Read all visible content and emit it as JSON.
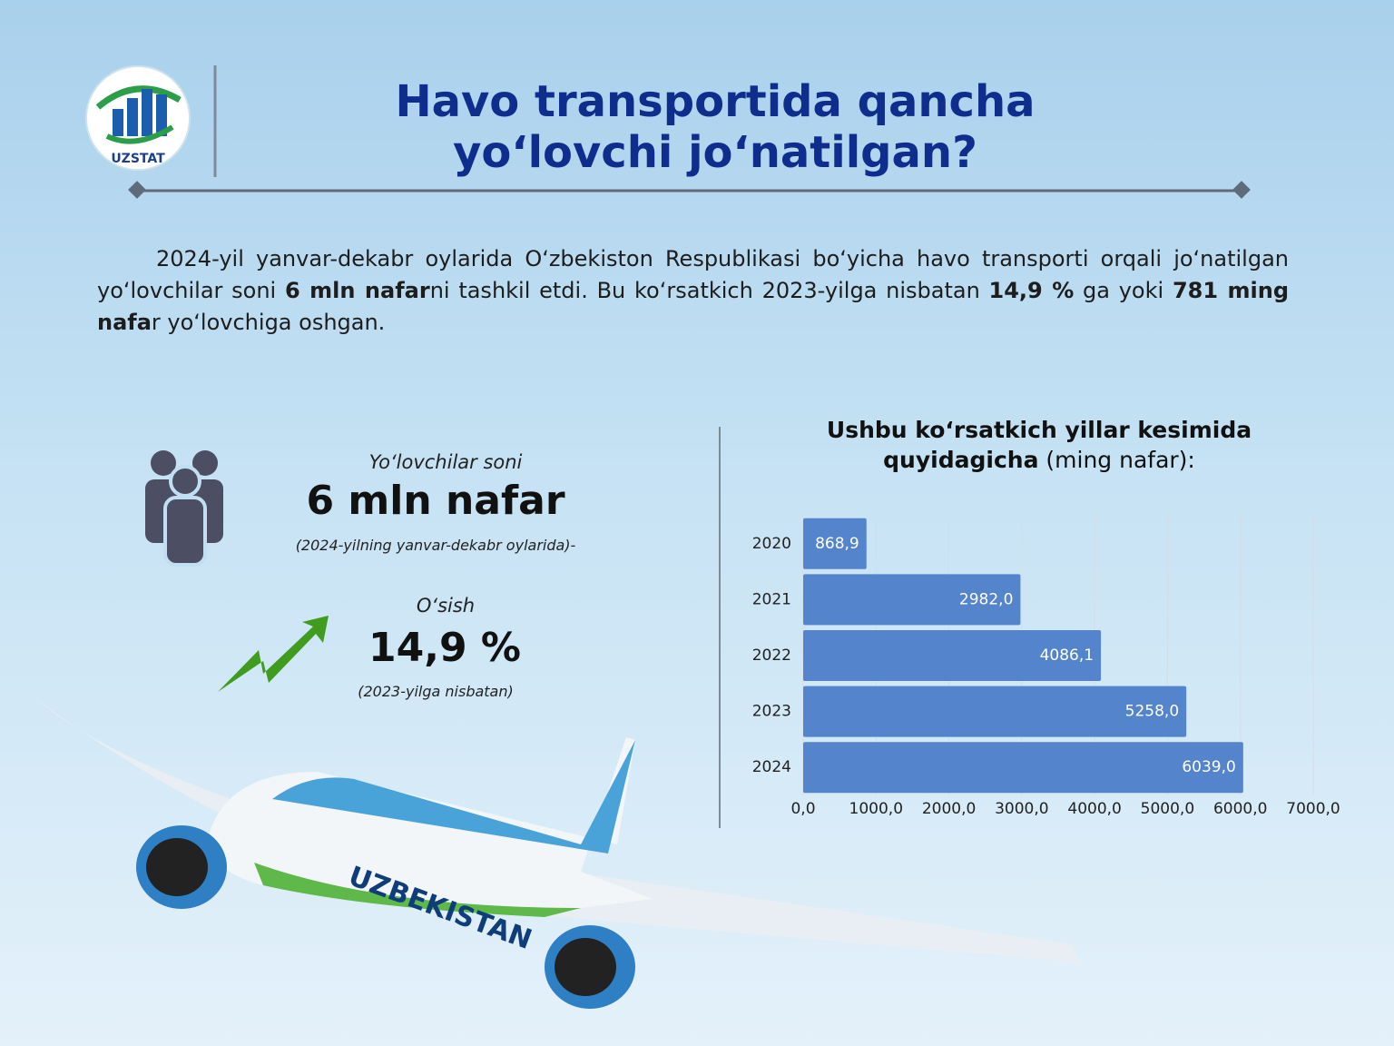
{
  "header": {
    "logo_text": "UZSTAT",
    "title_lines": [
      "Havo transportida qancha",
      "yo‘lovchi jo‘natilgan?"
    ]
  },
  "paragraph": {
    "runs": [
      {
        "text": "2024-yil yanvar-dekabr oylarida O‘zbekiston Respublikasi bo‘yicha havo transporti orqali jo‘natilgan yo‘lovchilar soni ",
        "bold": false
      },
      {
        "text": "6 mln nafar",
        "bold": true
      },
      {
        "text": "ni tashkil etdi. Bu ko‘rsatkich 2023-yilga nisbatan ",
        "bold": false
      },
      {
        "text": "14,9 %",
        "bold": true
      },
      {
        "text": " ga yoki ",
        "bold": false
      },
      {
        "text": "781 ming nafa",
        "bold": true
      },
      {
        "text": "r yo‘lovchiga oshgan.",
        "bold": false
      }
    ]
  },
  "stats": [
    {
      "label": "Yo‘lovchilar soni",
      "value": "6 mln nafar",
      "note": "(2024-yilning yanvar-dekabr oylarida)-"
    },
    {
      "label": "O‘sish",
      "value": "14,9 %",
      "note": "(2023-yilga nisbatan)"
    }
  ],
  "chart_data": {
    "type": "hbar",
    "title": "Ushbu ko‘rsatkich yillar kesimida",
    "title_line2": "quyidagicha",
    "unit": "(ming nafar):",
    "categories": [
      "2020",
      "2021",
      "2022",
      "2023",
      "2024"
    ],
    "values": [
      868.9,
      2982.0,
      4086.1,
      5258.0,
      6039.0
    ],
    "value_labels": [
      "868,9",
      "2982,0",
      "4086,1",
      "5258,0",
      "6039,0"
    ],
    "color": "#5484cc",
    "xlim": [
      0,
      7000
    ],
    "xticks": [
      {
        "value": 0,
        "label": "0,0"
      },
      {
        "value": 1000,
        "label": "1000,0"
      },
      {
        "value": 2000,
        "label": "2000,0"
      },
      {
        "value": 3000,
        "label": "3000,0"
      },
      {
        "value": 4000,
        "label": "4000,0"
      },
      {
        "value": 5000,
        "label": "5000,0"
      },
      {
        "value": 6000,
        "label": "6000,0"
      },
      {
        "value": 7000,
        "label": "7000,0"
      }
    ],
    "grid": true
  }
}
